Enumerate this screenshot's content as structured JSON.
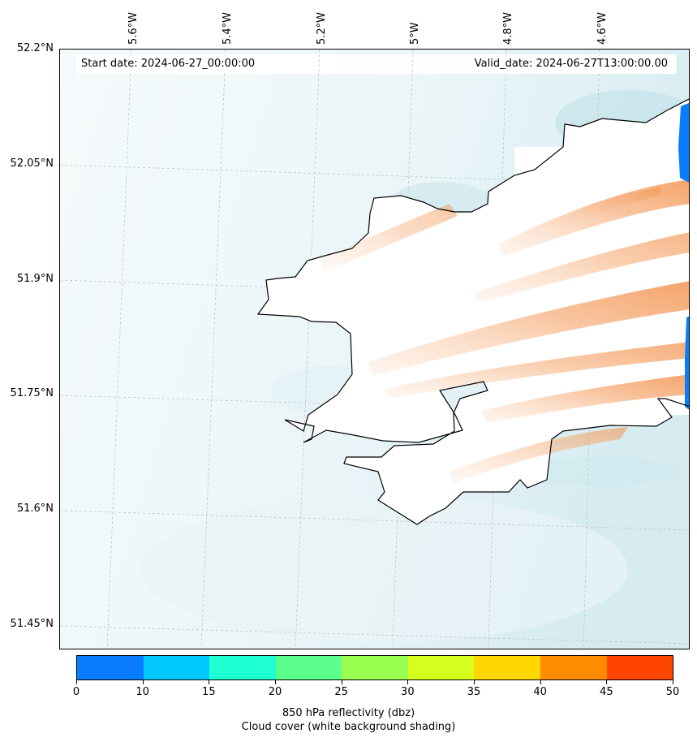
{
  "map": {
    "start_label": "Start date: 2024-06-27_00:00:00",
    "valid_label": "Valid_date: 2024-06-27T13:00:00.00",
    "lon_ticks": [
      "5.6°W",
      "5.4°W",
      "5.2°W",
      "5°W",
      "4.8°W",
      "4.6°W"
    ],
    "lat_ticks": [
      "52.2°N",
      "52.05°N",
      "51.9°N",
      "51.75°N",
      "51.6°N",
      "51.45°N"
    ],
    "land_color": "#ffffff",
    "sea_cloud_color": "#cfe8ee",
    "reflectivity_warm_color": "#f5a36a",
    "reflectivity_cold_color": "#0a7cff"
  },
  "colorbar": {
    "ticks": [
      "0",
      "10",
      "15",
      "20",
      "25",
      "30",
      "35",
      "40",
      "45",
      "50"
    ],
    "colors": [
      "#0a7cff",
      "#00c8ff",
      "#1effd2",
      "#5cff8c",
      "#9bff52",
      "#d6ff1e",
      "#ffd700",
      "#ff8c00",
      "#ff4500"
    ],
    "label_line1": "850 hPa reflectivity (dbz)",
    "label_line2": "Cloud cover (white background shading)"
  }
}
